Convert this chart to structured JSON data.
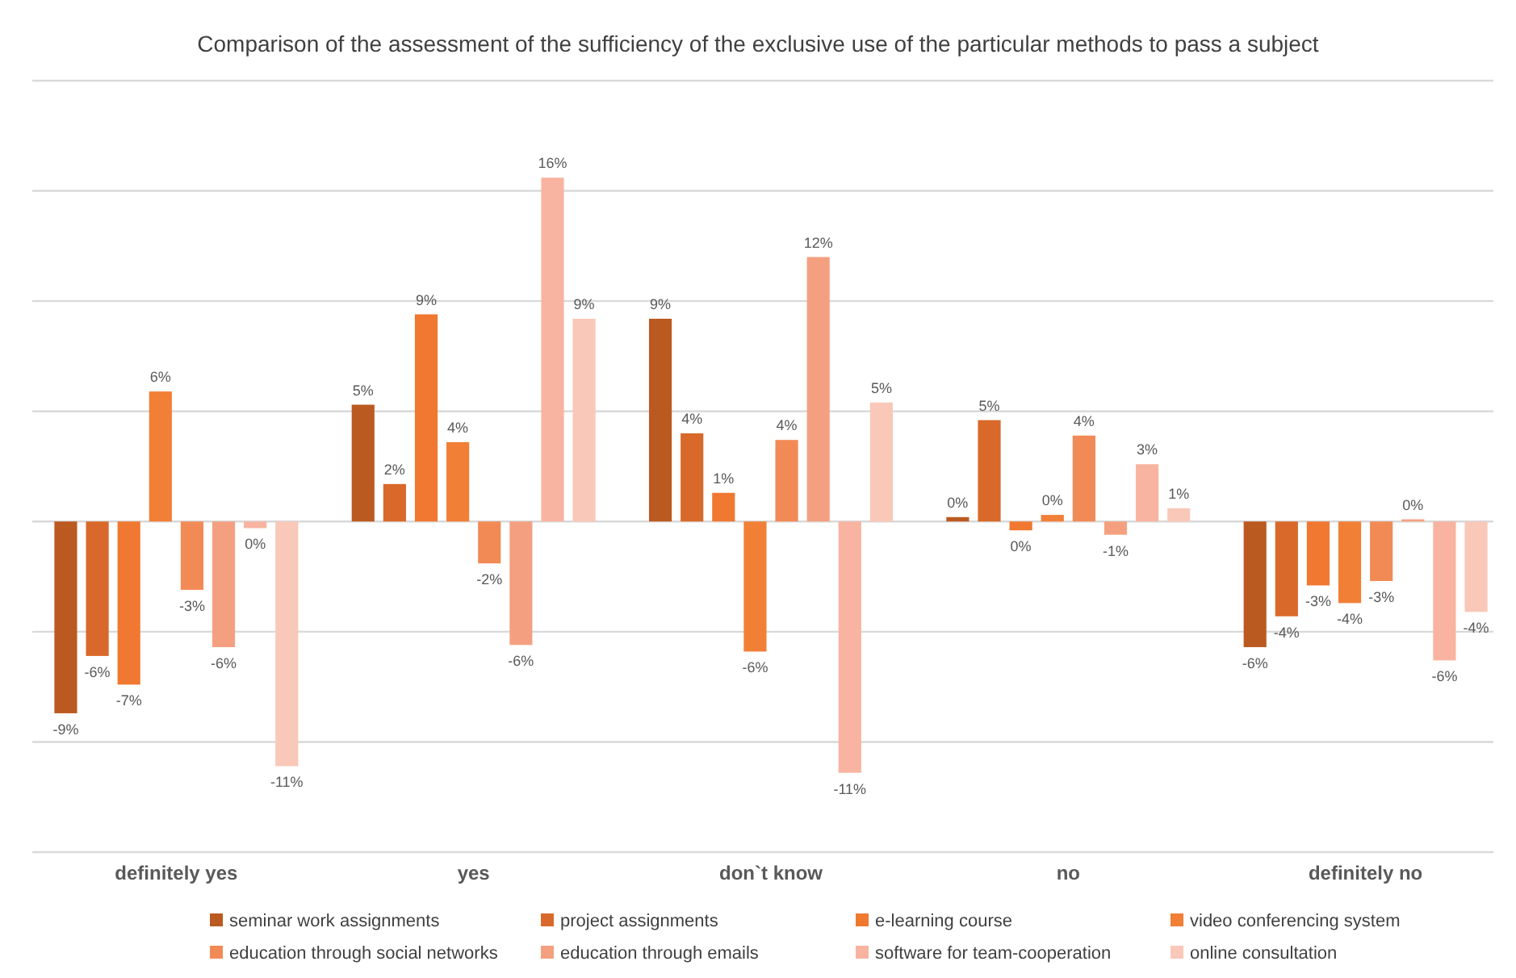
{
  "chart_data": {
    "type": "bar",
    "title": "Comparison of the assessment of the sufficiency of the exclusive use of the particular methods to pass a subject",
    "categories": [
      "definitely yes",
      "yes",
      "don`t know",
      "no",
      "definitely no"
    ],
    "series": [
      {
        "name": "seminar work assignments",
        "color": "#bb5a20",
        "values": [
          -8.7,
          5.3,
          9.2,
          0.2,
          -5.7
        ],
        "value_labels": [
          "-9%",
          "5%",
          "9%",
          "0%",
          "-6%"
        ]
      },
      {
        "name": "project assignments",
        "color": "#d9692a",
        "values": [
          -6.1,
          1.7,
          4.0,
          4.6,
          -4.3
        ],
        "value_labels": [
          "-6%",
          "2%",
          "4%",
          "5%",
          "-4%"
        ]
      },
      {
        "name": "e-learning course",
        "color": "#f07830",
        "values": [
          -7.4,
          9.4,
          1.3,
          -0.4,
          -2.9
        ],
        "value_labels": [
          "-7%",
          "9%",
          "1%",
          "0%",
          "-3%"
        ]
      },
      {
        "name": "video conferencing system",
        "color": "#f27f36",
        "values": [
          5.9,
          3.6,
          -5.9,
          0.3,
          -3.7
        ],
        "value_labels": [
          "6%",
          "4%",
          "-6%",
          "0%",
          "-4%"
        ]
      },
      {
        "name": "education through social networks",
        "color": "#f28a55",
        "values": [
          -3.1,
          -1.9,
          3.7,
          3.9,
          -2.7
        ],
        "value_labels": [
          "-3%",
          "-2%",
          "4%",
          "4%",
          "-3%"
        ]
      },
      {
        "name": "education through emails",
        "color": "#f4a080",
        "values": [
          -5.7,
          -5.6,
          12.0,
          -0.6,
          0.1
        ],
        "value_labels": [
          "-6%",
          "-6%",
          "12%",
          "-1%",
          "0%"
        ]
      },
      {
        "name": "software for team-cooperation",
        "color": "#f8b4a0",
        "values": [
          -0.3,
          15.6,
          -11.4,
          2.6,
          -6.3
        ],
        "value_labels": [
          "0%",
          "16%",
          "-11%",
          "3%",
          "-6%"
        ]
      },
      {
        "name": "online consultation",
        "color": "#f9c8b8",
        "values": [
          -11.1,
          9.2,
          5.4,
          0.6,
          -4.1
        ],
        "value_labels": [
          "-11%",
          "9%",
          "5%",
          "1%",
          "-4%"
        ]
      }
    ],
    "ylim": [
      -15,
      20
    ],
    "yticks": [
      {
        "value": -15,
        "label": null
      },
      {
        "value": -10,
        "label": null
      },
      {
        "value": -5,
        "label": null
      },
      {
        "value": 0,
        "label": null
      },
      {
        "value": 5,
        "label": null
      },
      {
        "value": 10,
        "label": null
      },
      {
        "value": 15,
        "label": null
      },
      {
        "value": 20,
        "label": null
      }
    ],
    "tick_labels": "x",
    "grid": "y",
    "legend": "bottom"
  }
}
